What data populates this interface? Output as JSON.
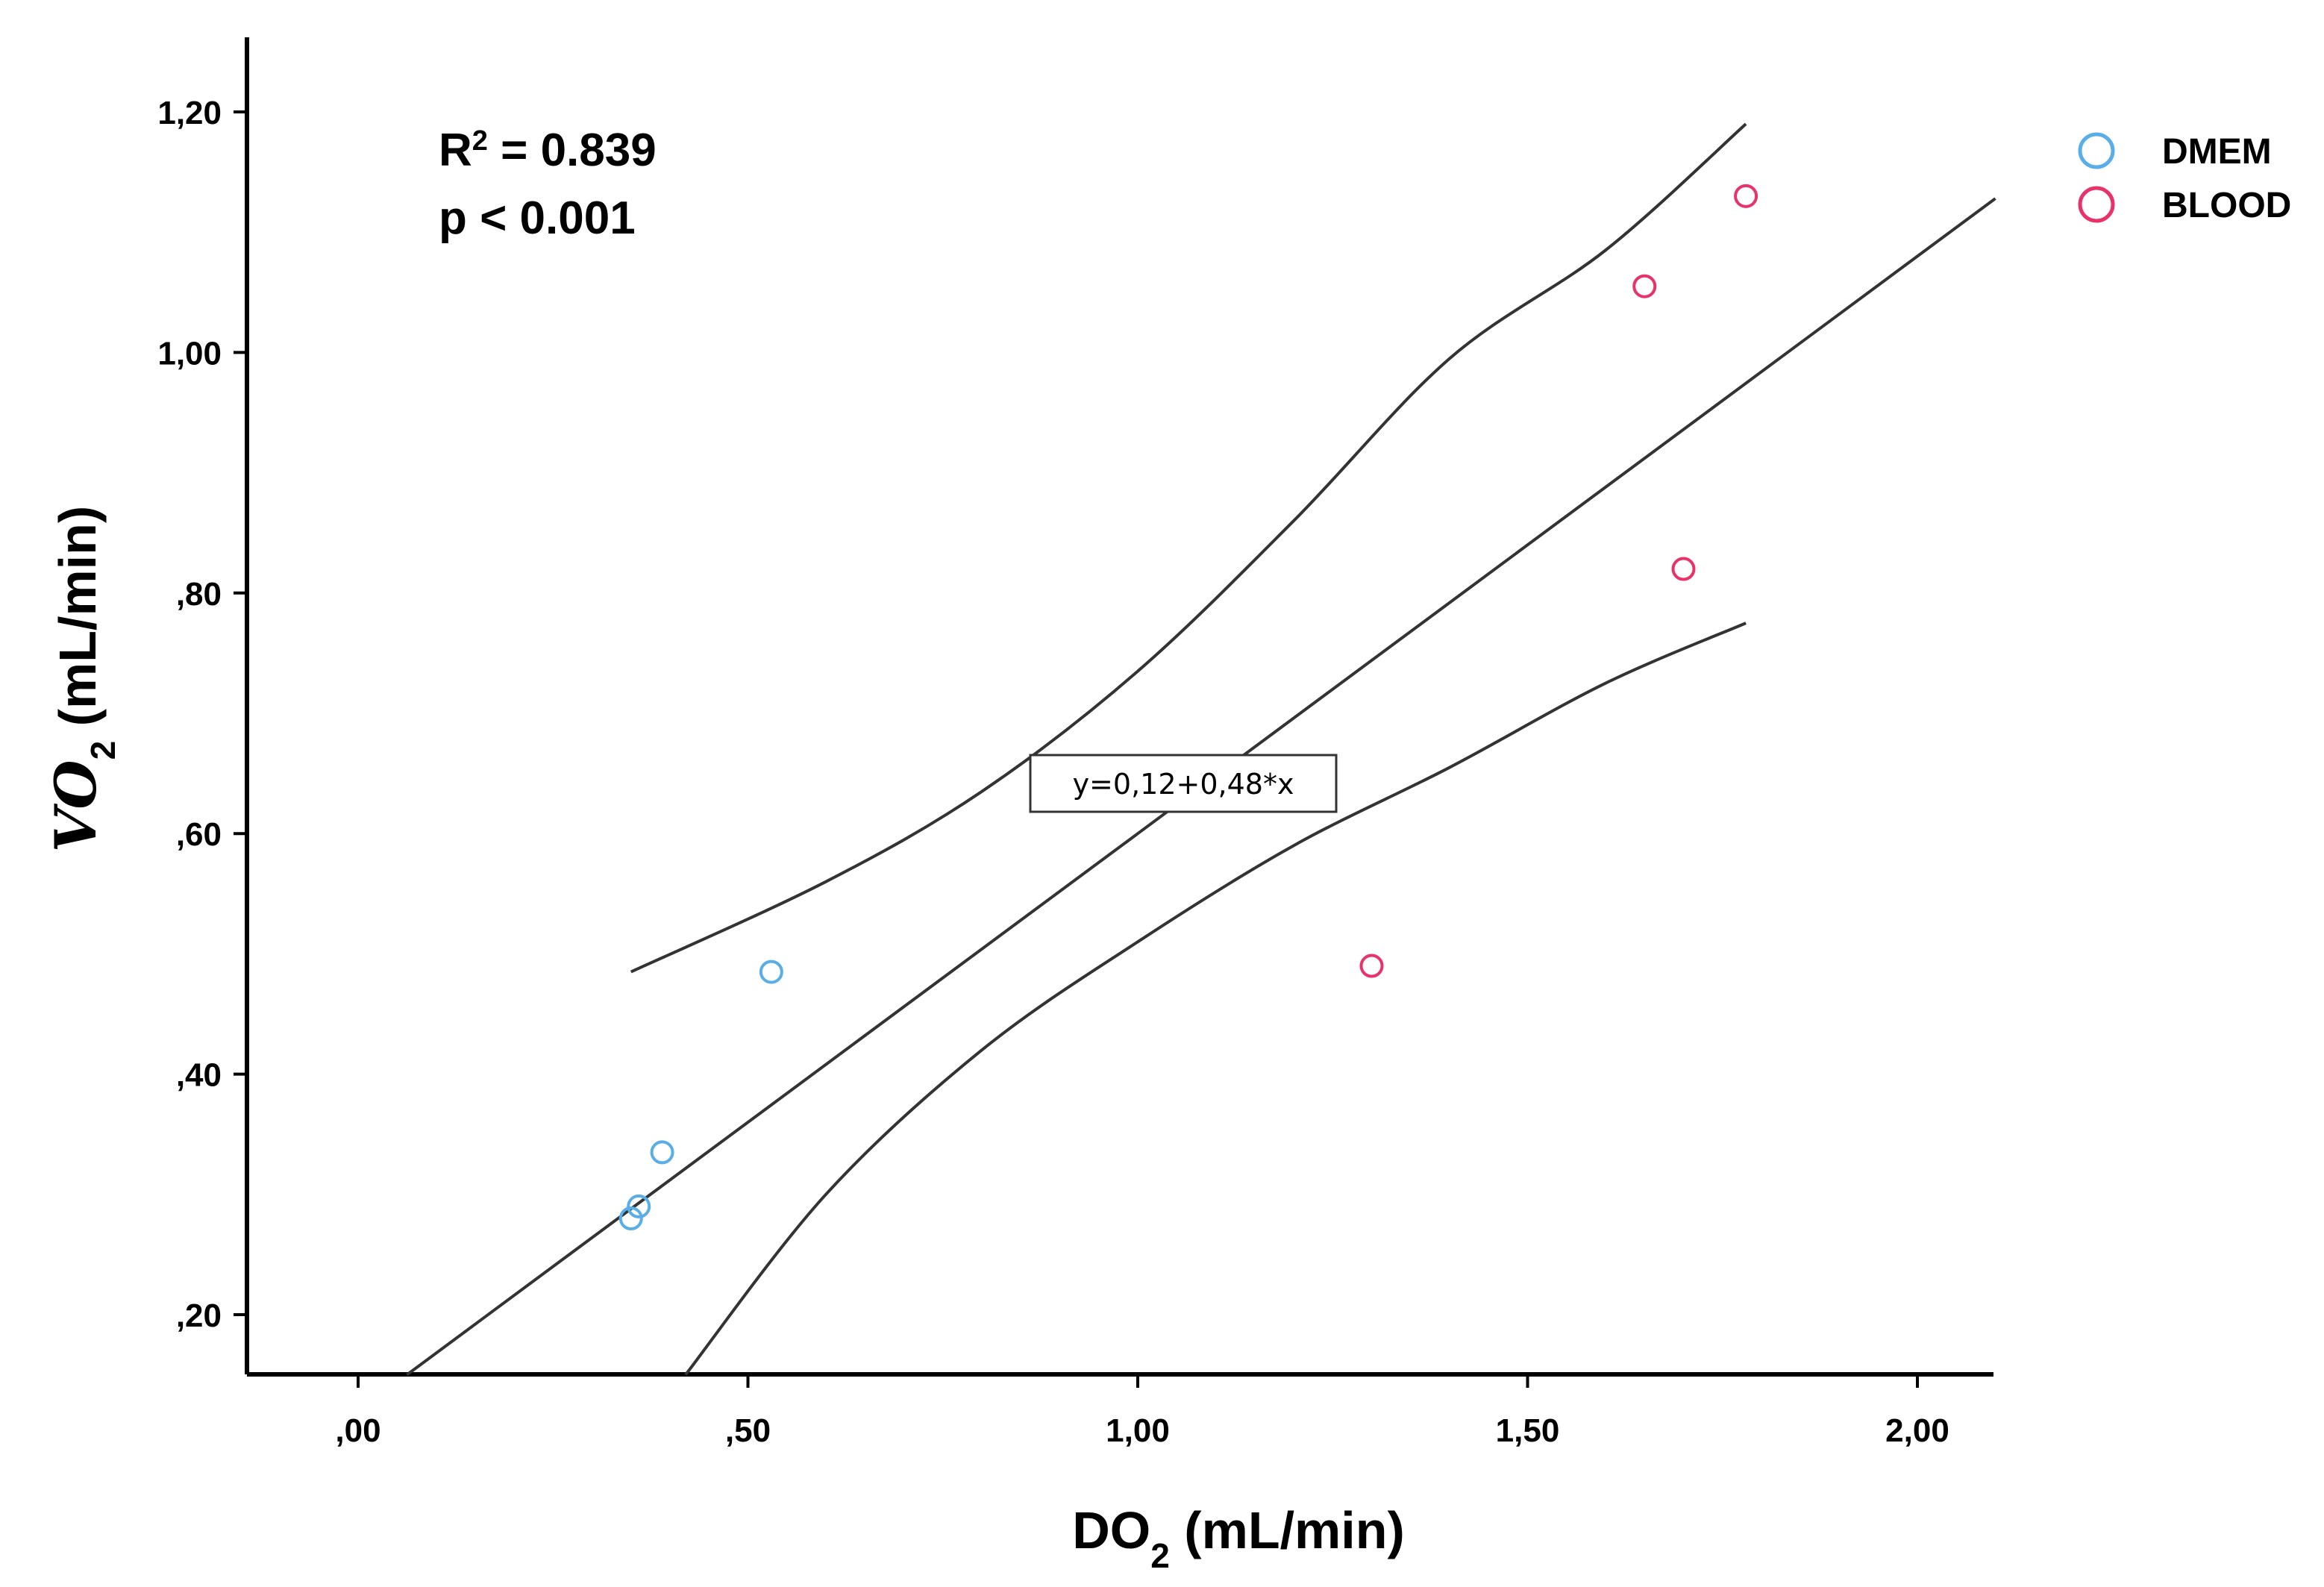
{
  "chart_data": {
    "type": "scatter",
    "xlabel": "DO",
    "xlabel_sub": "2",
    "xlabel_unit": " (mL/min)",
    "ylabel": "VO",
    "ylabel_sub": "2",
    "ylabel_unit": "  (mL/min)",
    "xlim": [
      -0.1,
      2.1
    ],
    "ylim": [
      0.15,
      1.26
    ],
    "x_ticks": [
      {
        "value": 0.0,
        "label": ",00"
      },
      {
        "value": 0.5,
        "label": ",50"
      },
      {
        "value": 1.0,
        "label": "1,00"
      },
      {
        "value": 1.5,
        "label": "1,50"
      },
      {
        "value": 2.0,
        "label": "2,00"
      }
    ],
    "y_ticks": [
      {
        "value": 0.2,
        "label": ",20"
      },
      {
        "value": 0.4,
        "label": ",40"
      },
      {
        "value": 0.6,
        "label": ",60"
      },
      {
        "value": 0.8,
        "label": ",80"
      },
      {
        "value": 1.0,
        "label": "1,00"
      },
      {
        "value": 1.2,
        "label": "1,20"
      }
    ],
    "stats": {
      "r2_label": "R",
      "r2_sup": "2",
      "r2_value": " = 0.839",
      "p_value": "p < 0.001"
    },
    "equation": "y=0,12+0,48*x",
    "series": [
      {
        "name": "DMEM",
        "color": "#5aaee8",
        "points": [
          [
            0.35,
            0.28
          ],
          [
            0.36,
            0.29
          ],
          [
            0.39,
            0.335
          ],
          [
            0.53,
            0.485
          ]
        ]
      },
      {
        "name": "BLOOD",
        "color": "#e8336a",
        "points": [
          [
            1.3,
            0.49
          ],
          [
            1.65,
            1.055
          ],
          [
            1.7,
            0.82
          ],
          [
            1.78,
            1.13
          ]
        ]
      }
    ],
    "regression_line": {
      "intercept": 0.12,
      "slope": 0.48,
      "x_range": [
        -0.1,
        2.1
      ]
    },
    "ci_upper": [
      [
        0.35,
        0.485
      ],
      [
        0.6,
        0.56
      ],
      [
        0.8,
        0.635
      ],
      [
        1.0,
        0.735
      ],
      [
        1.2,
        0.86
      ],
      [
        1.4,
        0.995
      ],
      [
        1.6,
        1.085
      ],
      [
        1.78,
        1.19
      ]
    ],
    "ci_lower": [
      [
        0.42,
        0.15
      ],
      [
        0.6,
        0.3
      ],
      [
        0.8,
        0.42
      ],
      [
        1.0,
        0.51
      ],
      [
        1.2,
        0.59
      ],
      [
        1.4,
        0.655
      ],
      [
        1.6,
        0.725
      ],
      [
        1.78,
        0.775
      ]
    ],
    "legend_position": "top-right",
    "grid": false
  }
}
